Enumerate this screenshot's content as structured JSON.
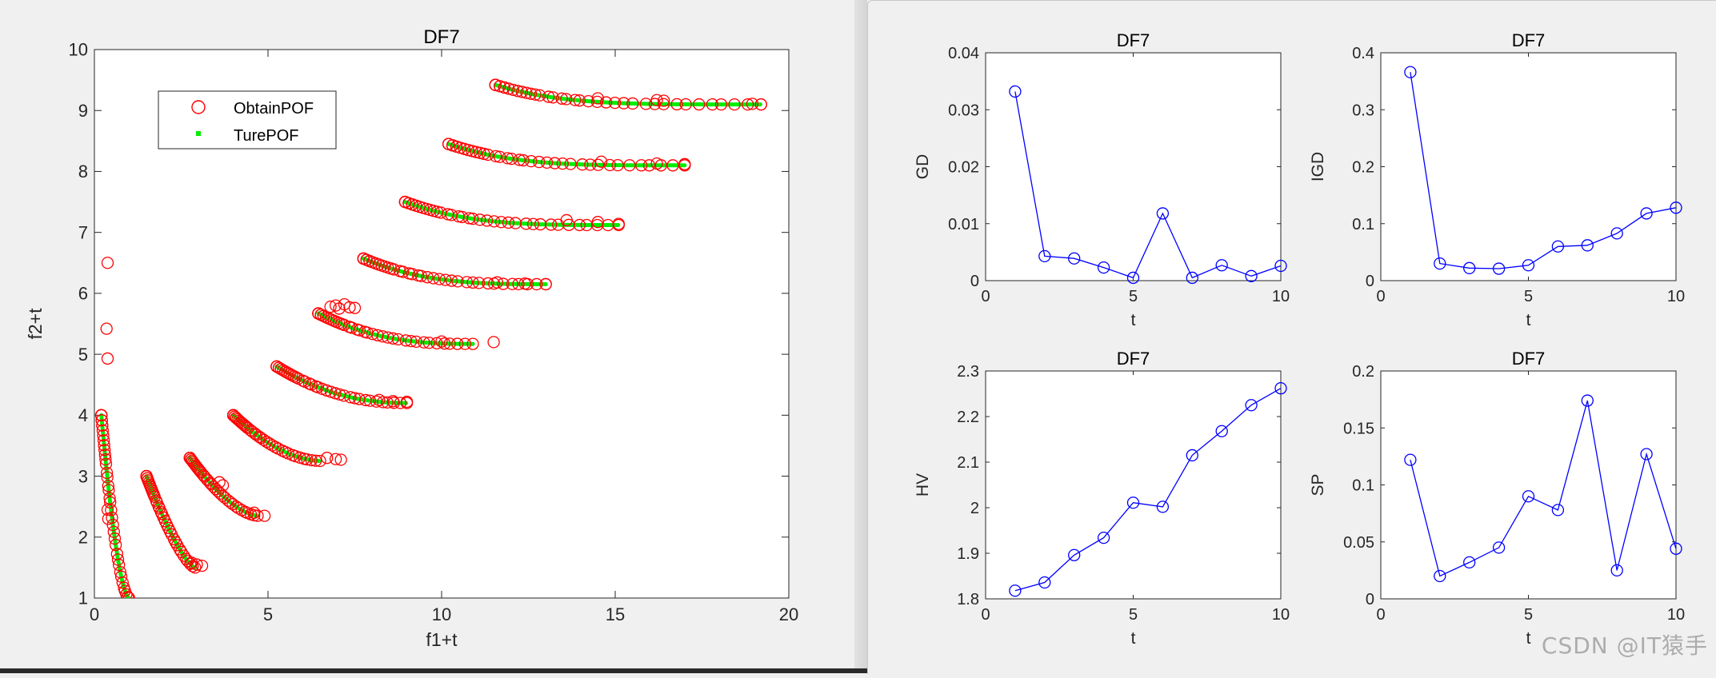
{
  "watermark": "CSDN @IT猿手",
  "colors": {
    "obtain": "#ff0000",
    "true": "#00ee00",
    "metric": "#0000ff",
    "axis": "#262626"
  },
  "chart_data": [
    {
      "id": "pof",
      "type": "scatter",
      "title": "DF7",
      "xlabel": "f1+t",
      "ylabel": "f2+t",
      "xlim": [
        0,
        20
      ],
      "ylim": [
        1,
        10
      ],
      "xticks": [
        0,
        5,
        10,
        15,
        20
      ],
      "yticks": [
        1,
        2,
        3,
        4,
        5,
        6,
        7,
        8,
        9,
        10
      ],
      "legend": {
        "position": "top-left",
        "entries": [
          "ObtainPOF",
          "TurePOF"
        ]
      },
      "series": [
        {
          "name": "ObtainPOF",
          "marker": "circle",
          "fronts": [
            {
              "t": 0,
              "x0": 0.3,
              "x1": 1.0,
              "extra": [
                [
                  0.38,
                  6.5
                ],
                [
                  0.35,
                  5.42
                ],
                [
                  0.38,
                  4.93
                ],
                [
                  0.38,
                  2.45
                ],
                [
                  0.4,
                  2.3
                ]
              ]
            },
            {
              "t": 1,
              "x0": 1.5,
              "x1": 3.1,
              "extra": [
                [
                  2.8,
                  1.58
                ],
                [
                  2.95,
                  1.55
                ],
                [
                  3.1,
                  1.53
                ]
              ]
            },
            {
              "t": 2,
              "x0": 2.75,
              "x1": 4.9,
              "extra": [
                [
                  3.6,
                  2.9
                ],
                [
                  3.7,
                  2.85
                ],
                [
                  4.6,
                  2.4
                ],
                [
                  4.9,
                  2.35
                ]
              ]
            },
            {
              "t": 3,
              "x0": 4.0,
              "x1": 7.1,
              "extra": [
                [
                  6.7,
                  3.3
                ],
                [
                  6.95,
                  3.28
                ],
                [
                  7.1,
                  3.27
                ]
              ]
            },
            {
              "t": 4,
              "x0": 5.25,
              "x1": 9.0,
              "extra": [
                [
                  8.2,
                  4.25
                ],
                [
                  8.6,
                  4.23
                ],
                [
                  9.0,
                  4.22
                ]
              ]
            },
            {
              "t": 5,
              "x0": 6.6,
              "x1": 11.5,
              "extra": [
                [
                  6.8,
                  5.78
                ],
                [
                  6.95,
                  5.8
                ],
                [
                  7.05,
                  5.75
                ],
                [
                  7.2,
                  5.82
                ],
                [
                  7.35,
                  5.77
                ],
                [
                  7.5,
                  5.76
                ],
                [
                  10.0,
                  5.21
                ],
                [
                  11.5,
                  5.2
                ]
              ]
            },
            {
              "t": 6,
              "x0": 7.75,
              "x1": 13.0,
              "extra": [
                [
                  11.6,
                  6.18
                ],
                [
                  12.4,
                  6.16
                ],
                [
                  13.0,
                  6.15
                ]
              ]
            },
            {
              "t": 7,
              "x0": 8.95,
              "x1": 15.1,
              "extra": [
                [
                  13.6,
                  7.2
                ],
                [
                  14.5,
                  7.17
                ],
                [
                  15.1,
                  7.14
                ]
              ]
            },
            {
              "t": 8,
              "x0": 10.2,
              "x1": 17.0,
              "extra": [
                [
                  14.6,
                  8.16
                ],
                [
                  16.2,
                  8.13
                ],
                [
                  17.0,
                  8.12
                ]
              ]
            },
            {
              "t": 9,
              "x0": 11.55,
              "x1": 19.2,
              "extra": [
                [
                  14.5,
                  9.2
                ],
                [
                  16.2,
                  9.17
                ],
                [
                  16.4,
                  9.16
                ],
                [
                  18.95,
                  9.11
                ],
                [
                  19.2,
                  9.1
                ]
              ]
            }
          ]
        },
        {
          "name": "TurePOF",
          "marker": "dot",
          "fronts": [
            {
              "t": 0,
              "x0": 0.2,
              "x1": 1.0
            },
            {
              "t": 1,
              "x0": 1.5,
              "x1": 2.9
            },
            {
              "t": 2,
              "x0": 2.75,
              "x1": 4.7
            },
            {
              "t": 3,
              "x0": 4.0,
              "x1": 6.5
            },
            {
              "t": 4,
              "x0": 5.25,
              "x1": 9.0
            },
            {
              "t": 5,
              "x0": 6.45,
              "x1": 10.9
            },
            {
              "t": 6,
              "x0": 7.75,
              "x1": 13.0
            },
            {
              "t": 7,
              "x0": 8.95,
              "x1": 15.1
            },
            {
              "t": 8,
              "x0": 10.2,
              "x1": 17.0
            },
            {
              "t": 9,
              "x0": 11.55,
              "x1": 19.2
            }
          ]
        }
      ]
    },
    {
      "id": "gd",
      "type": "line",
      "title": "DF7",
      "xlabel": "t",
      "ylabel": "GD",
      "xlim": [
        0,
        10
      ],
      "ylim": [
        0,
        0.04
      ],
      "xticks": [
        0,
        5,
        10
      ],
      "xtick_labels": [
        "0",
        "5",
        "10"
      ],
      "yticks": [
        0,
        0.01,
        0.02,
        0.03,
        0.04
      ],
      "ytick_labels": [
        "0",
        "0.01",
        "0.02",
        "0.03",
        "0.04"
      ],
      "x": [
        1,
        2,
        3,
        4,
        5,
        6,
        7,
        8,
        9,
        10
      ],
      "values": [
        0.0332,
        0.0043,
        0.0039,
        0.0023,
        0.0005,
        0.0118,
        0.0005,
        0.0027,
        0.0008,
        0.0026
      ]
    },
    {
      "id": "igd",
      "type": "line",
      "title": "DF7",
      "xlabel": "t",
      "ylabel": "IGD",
      "xlim": [
        0,
        10
      ],
      "ylim": [
        0,
        0.4
      ],
      "xticks": [
        0,
        5,
        10
      ],
      "xtick_labels": [
        "0",
        "5",
        "10"
      ],
      "yticks": [
        0,
        0.1,
        0.2,
        0.3,
        0.4
      ],
      "ytick_labels": [
        "0",
        "0.1",
        "0.2",
        "0.3",
        "0.4"
      ],
      "x": [
        1,
        2,
        3,
        4,
        5,
        6,
        7,
        8,
        9,
        10
      ],
      "values": [
        0.366,
        0.03,
        0.022,
        0.021,
        0.027,
        0.06,
        0.062,
        0.083,
        0.118,
        0.128
      ]
    },
    {
      "id": "hv",
      "type": "line",
      "title": "DF7",
      "xlabel": "t",
      "ylabel": "HV",
      "xlim": [
        0,
        10
      ],
      "ylim": [
        1.8,
        2.3
      ],
      "xticks": [
        0,
        5,
        10
      ],
      "xtick_labels": [
        "0",
        "5",
        "10"
      ],
      "yticks": [
        1.8,
        1.9,
        2.0,
        2.1,
        2.2,
        2.3
      ],
      "ytick_labels": [
        "1.8",
        "1.9",
        "2",
        "2.1",
        "2.2",
        "2.3"
      ],
      "x": [
        1,
        2,
        3,
        4,
        5,
        6,
        7,
        8,
        9,
        10
      ],
      "values": [
        1.818,
        1.836,
        1.896,
        1.934,
        2.011,
        2.002,
        2.115,
        2.168,
        2.225,
        2.262
      ]
    },
    {
      "id": "sp",
      "type": "line",
      "title": "DF7",
      "xlabel": "t",
      "ylabel": "SP",
      "xlim": [
        0,
        10
      ],
      "ylim": [
        0,
        0.2
      ],
      "xticks": [
        0,
        5,
        10
      ],
      "xtick_labels": [
        "0",
        "5",
        "10"
      ],
      "yticks": [
        0,
        0.05,
        0.1,
        0.15,
        0.2
      ],
      "ytick_labels": [
        "0",
        "0.05",
        "0.1",
        "0.15",
        "0.2"
      ],
      "x": [
        1,
        2,
        3,
        4,
        5,
        6,
        7,
        8,
        9,
        10
      ],
      "values": [
        0.122,
        0.02,
        0.032,
        0.045,
        0.09,
        0.078,
        0.174,
        0.025,
        0.127,
        0.044
      ]
    }
  ]
}
